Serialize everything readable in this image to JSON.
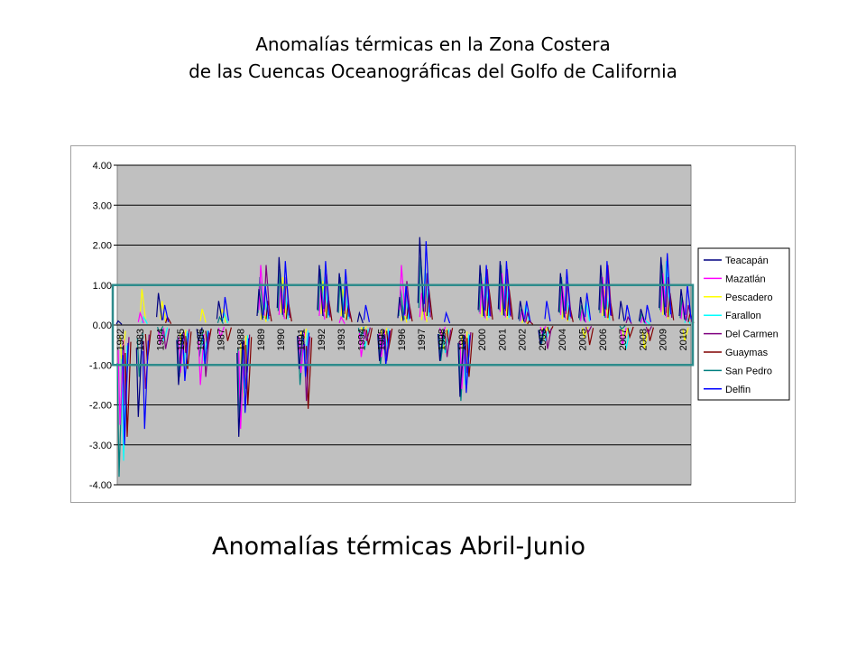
{
  "title": {
    "line1": "Anomalías térmicas en la Zona Costera",
    "line2": "de las Cuencas Oceanográficas del Golfo de California"
  },
  "caption": "Anomalías térmicas Abril-Junio",
  "chart_data": {
    "type": "line",
    "title": "",
    "xlabel": "",
    "ylabel": "",
    "ylim": [
      -4.0,
      4.0
    ],
    "y_ticks": [
      "4.00",
      "3.00",
      "2.00",
      "1.00",
      "0.00",
      "-1.00",
      "-2.00",
      "-3.00",
      "-4.00"
    ],
    "categories": [
      "1982",
      "1983",
      "1984",
      "1985",
      "1986",
      "1987",
      "1988",
      "1989",
      "1990",
      "1991",
      "1992",
      "1993",
      "1994",
      "1995",
      "1996",
      "1997",
      "1998",
      "1999",
      "2000",
      "2001",
      "2002",
      "2003",
      "2004",
      "2005",
      "2006",
      "2007",
      "2008",
      "2009",
      "2010"
    ],
    "grid": "horizontal",
    "plot_background": "#c0c0c0",
    "legend_position": "right",
    "highlight_band": {
      "from": -1.0,
      "to": 1.0,
      "color": "#2e8b8b"
    },
    "series": [
      {
        "name": "Teacapán",
        "color": "#000080",
        "values": [
          0.1,
          -2.3,
          0.8,
          -1.5,
          -0.4,
          0.6,
          -2.8,
          0.9,
          1.7,
          -1.1,
          1.5,
          1.3,
          0.3,
          -0.9,
          0.7,
          2.2,
          -0.9,
          -1.8,
          1.5,
          1.6,
          0.6,
          -0.5,
          1.3,
          0.7,
          1.5,
          0.6,
          0.4,
          1.7,
          0.9
        ]
      },
      {
        "name": "Mazatlán",
        "color": "#ff00ff",
        "values": [
          -2.5,
          0.3,
          -0.5,
          -1.2,
          -1.5,
          -0.3,
          -2.6,
          1.5,
          1.0,
          -1.2,
          0.9,
          0.2,
          -0.8,
          -0.8,
          1.5,
          0.8,
          -0.3,
          -1.6,
          1.1,
          1.3,
          0.4,
          -0.2,
          1.0,
          0.4,
          1.2,
          -0.5,
          0.2,
          1.3,
          0.6
        ]
      },
      {
        "name": "Pescadero",
        "color": "#ffff00",
        "values": [
          -1.0,
          0.9,
          0.6,
          -0.8,
          0.4,
          0.4,
          -1.8,
          0.5,
          1.2,
          -0.6,
          1.1,
          0.9,
          -0.2,
          -0.5,
          0.4,
          0.5,
          -0.6,
          -1.1,
          0.8,
          1.0,
          0.2,
          -0.3,
          0.6,
          -0.3,
          0.9,
          -0.4,
          -0.6,
          1.0,
          -0.4
        ]
      },
      {
        "name": "Farallon",
        "color": "#00ffff",
        "values": [
          -3.4,
          0.2,
          -0.4,
          -1.0,
          -0.9,
          0.3,
          -1.7,
          0.7,
          1.0,
          -0.9,
          1.2,
          1.0,
          -0.6,
          -0.7,
          0.8,
          1.4,
          -0.7,
          -1.5,
          1.2,
          1.2,
          0.5,
          -0.4,
          0.8,
          0.6,
          0.8,
          -0.6,
          0.1,
          1.6,
          0.2
        ]
      },
      {
        "name": "Del Carmen",
        "color": "#800080",
        "values": [
          -2.0,
          -1.6,
          -0.6,
          -0.7,
          -1.3,
          0.0,
          -1.6,
          1.5,
          1.2,
          -1.9,
          1.3,
          1.1,
          -0.4,
          -0.9,
          1.1,
          1.3,
          -0.8,
          -1.2,
          1.4,
          1.4,
          0.3,
          -0.6,
          1.1,
          -0.2,
          1.5,
          0.2,
          -0.2,
          1.2,
          0.5
        ]
      },
      {
        "name": "Guaymas",
        "color": "#800000",
        "values": [
          -2.8,
          -0.9,
          0.2,
          -1.1,
          -0.6,
          -0.4,
          -2.0,
          0.6,
          0.6,
          -2.1,
          0.7,
          0.5,
          -0.5,
          -0.6,
          0.6,
          0.9,
          -0.5,
          -1.3,
          0.9,
          0.9,
          0.1,
          -0.2,
          0.5,
          -0.5,
          0.7,
          -0.3,
          -0.4,
          0.8,
          0.3
        ]
      },
      {
        "name": "San Pedro",
        "color": "#008080",
        "values": [
          -3.8,
          -1.3,
          -0.2,
          -1.3,
          -0.8,
          0.2,
          -2.4,
          1.2,
          1.4,
          -1.5,
          1.4,
          1.2,
          -0.3,
          -1.0,
          0.9,
          1.7,
          -0.9,
          -1.9,
          1.3,
          1.5,
          0.4,
          -0.5,
          1.2,
          0.5,
          1.2,
          -0.1,
          0.3,
          1.5,
          0.7
        ]
      },
      {
        "name": "Delfin",
        "color": "#0000ff",
        "values": [
          -3.0,
          -2.6,
          0.5,
          -1.4,
          -1.0,
          0.7,
          -2.2,
          1.0,
          1.6,
          -1.3,
          1.6,
          1.4,
          0.5,
          -1.0,
          1.0,
          2.1,
          0.3,
          -1.7,
          1.5,
          1.6,
          0.6,
          0.6,
          1.4,
          0.8,
          1.6,
          0.5,
          0.5,
          1.8,
          1.0
        ]
      }
    ]
  }
}
